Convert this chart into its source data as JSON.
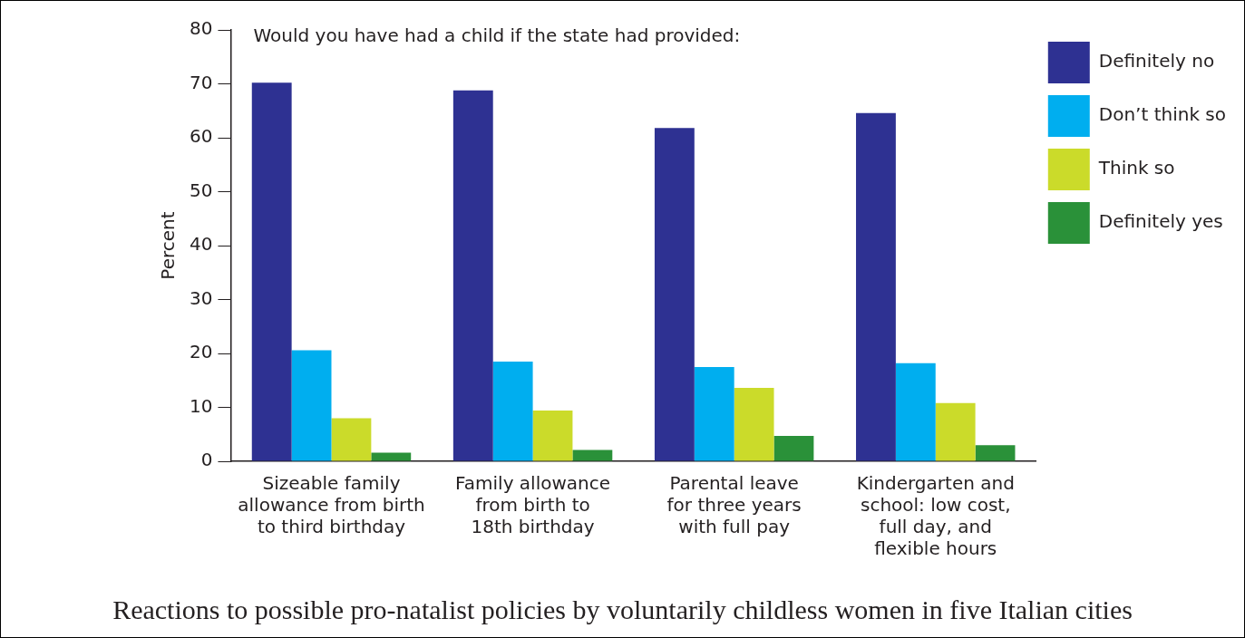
{
  "chart_data": {
    "type": "bar",
    "title": "Would you have had a child if the state had provided:",
    "ylabel": "Percent",
    "categories": [
      "Sizeable family\nallowance from birth\nto third birthday",
      "Family allowance\nfrom birth to\n18th birthday",
      "Parental leave\nfor three years\nwith full pay",
      "Kindergarten and\nschool: low cost,\nfull day, and\nflexible hours"
    ],
    "series": [
      {
        "name": "Definitely no",
        "color": "#2e3192",
        "values": [
          70.2,
          68.8,
          61.8,
          64.6
        ]
      },
      {
        "name": "Don’t think so",
        "color": "#00aeef",
        "values": [
          20.6,
          18.5,
          17.5,
          18.2
        ]
      },
      {
        "name": "Think so",
        "color": "#cbdb2a",
        "values": [
          8.0,
          9.4,
          13.6,
          10.8
        ]
      },
      {
        "name": "Definitely yes",
        "color": "#2a9139",
        "values": [
          1.6,
          2.1,
          4.7,
          3.0
        ]
      }
    ],
    "ylim": [
      0,
      80
    ],
    "yticks": [
      0,
      10,
      20,
      30,
      40,
      50,
      60,
      70,
      80
    ],
    "grid": false,
    "legend": "top right",
    "annotations": [
      "Reactions to possible pro-natalist policies by voluntarily childless women in five Italian cities"
    ]
  }
}
